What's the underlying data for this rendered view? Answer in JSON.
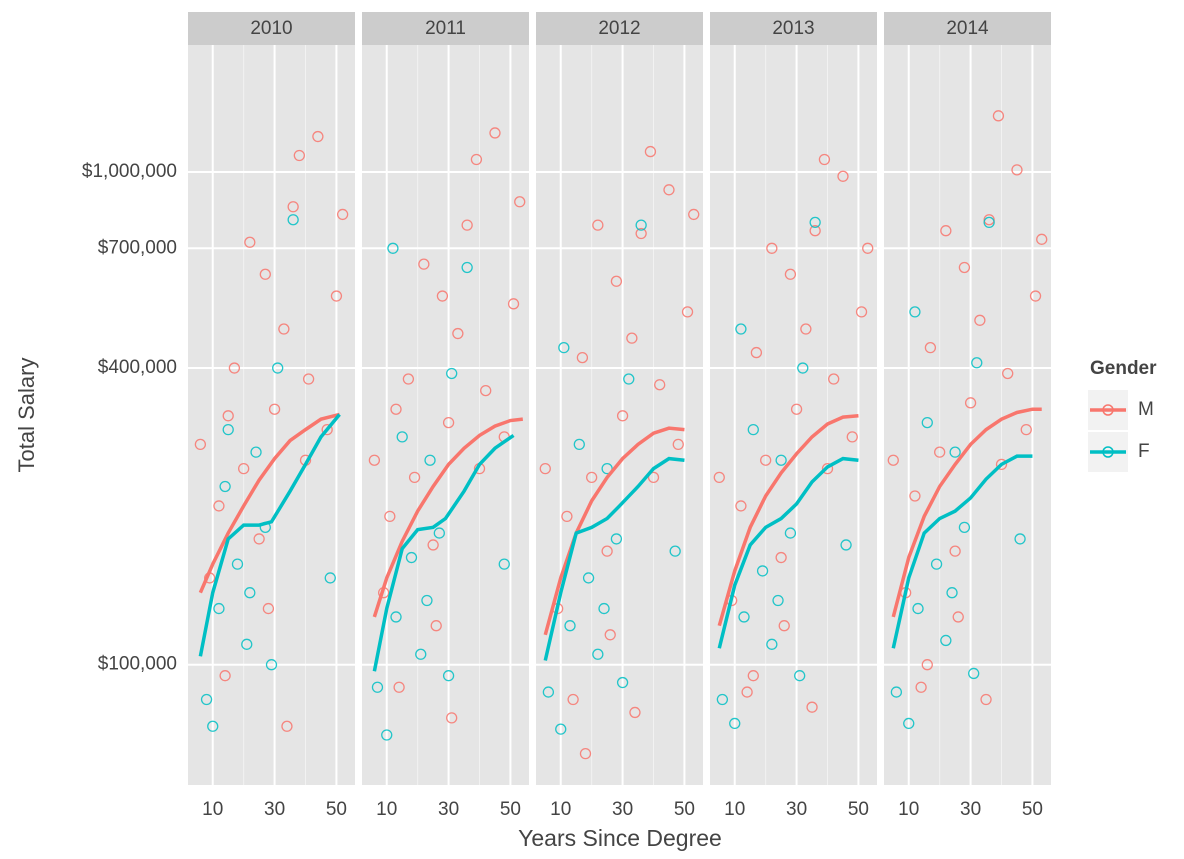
{
  "chart_data": {
    "type": "scatter",
    "log_y": true,
    "grid": true,
    "xlabel": "Years Since Degree",
    "ylabel": "Total Salary",
    "legend_title": "Gender",
    "legend_position": "right",
    "xlim": [
      2,
      56
    ],
    "xticks": [
      10,
      30,
      50
    ],
    "xminor": [
      20,
      40
    ],
    "ylim": [
      57000,
      1810000
    ],
    "yticks": [
      {
        "value": 100000,
        "label": "$100,000"
      },
      {
        "value": 400000,
        "label": "$400,000"
      },
      {
        "value": 700000,
        "label": "$700,000"
      },
      {
        "value": 1000000,
        "label": "$1,000,000"
      }
    ],
    "series": [
      {
        "name": "M",
        "color": "#F8766D"
      },
      {
        "name": "F",
        "color": "#00BFC4"
      }
    ],
    "facets": [
      {
        "title": "2010",
        "data": [
          {
            "x": [
              6,
              9,
              12,
              14,
              17,
              20,
              22,
              25,
              27,
              30,
              33,
              36,
              38,
              41,
              44,
              47,
              50,
              52,
              28,
              40,
              15,
              34
            ],
            "values": [
              280000,
              150000,
              210000,
              95000,
              400000,
              250000,
              720000,
              180000,
              620000,
              330000,
              480000,
              850000,
              1080000,
              380000,
              1180000,
              300000,
              560000,
              820000,
              130000,
              260000,
              320000,
              75000
            ],
            "smooth_x": [
              6,
              10,
              15,
              20,
              25,
              30,
              35,
              40,
              45,
              51
            ],
            "smooth_values": [
              140000,
              160000,
              185000,
              210000,
              237000,
              262000,
              285000,
              300000,
              315000,
              322000
            ]
          },
          {
            "x": [
              8,
              10,
              12,
              15,
              18,
              21,
              24,
              27,
              31,
              36,
              48,
              14,
              22,
              29
            ],
            "values": [
              85000,
              75000,
              130000,
              300000,
              160000,
              110000,
              270000,
              190000,
              400000,
              800000,
              150000,
              230000,
              140000,
              100000
            ],
            "smooth_x": [
              6,
              10,
              15,
              20,
              25,
              29,
              35,
              40,
              45,
              51
            ],
            "smooth_values": [
              104000,
              140000,
              180000,
              192000,
              192000,
              195000,
              225000,
              255000,
              290000,
              322000
            ]
          }
        ]
      },
      {
        "title": "2011",
        "data": [
          {
            "x": [
              6,
              9,
              11,
              14,
              17,
              19,
              22,
              25,
              28,
              30,
              33,
              36,
              39,
              42,
              45,
              48,
              51,
              53,
              26,
              40,
              13,
              31
            ],
            "values": [
              260000,
              140000,
              200000,
              90000,
              380000,
              240000,
              650000,
              175000,
              560000,
              310000,
              470000,
              780000,
              1060000,
              360000,
              1200000,
              290000,
              540000,
              870000,
              120000,
              250000,
              330000,
              78000
            ],
            "smooth_x": [
              6,
              10,
              15,
              20,
              25,
              30,
              35,
              40,
              45,
              50,
              54
            ],
            "smooth_values": [
              125000,
              150000,
              178000,
              205000,
              230000,
              255000,
              275000,
              292000,
              305000,
              313000,
              315000
            ]
          },
          {
            "x": [
              7,
              10,
              13,
              15,
              18,
              21,
              24,
              27,
              31,
              36,
              48,
              12,
              23,
              30
            ],
            "values": [
              90000,
              72000,
              125000,
              290000,
              165000,
              105000,
              260000,
              185000,
              390000,
              640000,
              160000,
              700000,
              135000,
              95000
            ],
            "smooth_x": [
              6,
              10,
              15,
              20,
              25,
              29,
              35,
              40,
              45,
              51
            ],
            "smooth_values": [
              97000,
              130000,
              172000,
              188000,
              190000,
              198000,
              225000,
              255000,
              275000,
              292000
            ]
          }
        ]
      },
      {
        "title": "2012",
        "data": [
          {
            "x": [
              5,
              9,
              12,
              14,
              17,
              20,
              22,
              25,
              28,
              30,
              33,
              36,
              39,
              42,
              45,
              48,
              51,
              53,
              26,
              40,
              18,
              34
            ],
            "values": [
              250000,
              130000,
              200000,
              85000,
              420000,
              240000,
              780000,
              170000,
              600000,
              320000,
              460000,
              750000,
              1100000,
              370000,
              920000,
              280000,
              520000,
              820000,
              115000,
              240000,
              66000,
              80000
            ],
            "smooth_x": [
              5,
              10,
              15,
              20,
              25,
              30,
              35,
              40,
              45,
              50
            ],
            "smooth_values": [
              115000,
              150000,
              185000,
              215000,
              240000,
              262000,
              280000,
              295000,
              302000,
              300000
            ]
          },
          {
            "x": [
              6,
              10,
              13,
              16,
              19,
              22,
              25,
              28,
              32,
              36,
              47,
              11,
              24,
              30
            ],
            "values": [
              88000,
              74000,
              120000,
              280000,
              150000,
              105000,
              250000,
              180000,
              380000,
              780000,
              170000,
              440000,
              130000,
              92000
            ],
            "smooth_x": [
              5,
              10,
              15,
              20,
              25,
              29,
              35,
              40,
              45,
              50
            ],
            "smooth_values": [
              102000,
              140000,
              185000,
              190000,
              198000,
              210000,
              230000,
              250000,
              262000,
              260000
            ]
          }
        ]
      },
      {
        "title": "2013",
        "data": [
          {
            "x": [
              5,
              9,
              12,
              14,
              17,
              20,
              22,
              25,
              28,
              30,
              33,
              36,
              39,
              42,
              45,
              48,
              51,
              53,
              26,
              40,
              16,
              35
            ],
            "values": [
              240000,
              135000,
              210000,
              88000,
              430000,
              260000,
              700000,
              165000,
              620000,
              330000,
              480000,
              760000,
              1060000,
              380000,
              980000,
              290000,
              520000,
              700000,
              120000,
              250000,
              95000,
              82000
            ],
            "smooth_x": [
              5,
              10,
              15,
              20,
              25,
              30,
              35,
              40,
              45,
              50
            ],
            "smooth_values": [
              120000,
              155000,
              190000,
              220000,
              245000,
              268000,
              290000,
              308000,
              318000,
              320000
            ]
          },
          {
            "x": [
              6,
              10,
              13,
              16,
              19,
              22,
              25,
              28,
              32,
              36,
              46,
              12,
              24,
              31
            ],
            "values": [
              85000,
              76000,
              125000,
              300000,
              155000,
              110000,
              260000,
              185000,
              400000,
              790000,
              175000,
              480000,
              135000,
              95000
            ],
            "smooth_x": [
              5,
              10,
              15,
              20,
              25,
              30,
              35,
              40,
              45,
              50
            ],
            "smooth_values": [
              108000,
              145000,
              175000,
              190000,
              198000,
              212000,
              235000,
              252000,
              262000,
              260000
            ]
          }
        ]
      },
      {
        "title": "2014",
        "data": [
          {
            "x": [
              5,
              9,
              12,
              14,
              17,
              20,
              22,
              25,
              28,
              30,
              33,
              36,
              39,
              42,
              45,
              48,
              51,
              53,
              26,
              40,
              16,
              35
            ],
            "values": [
              260000,
              140000,
              220000,
              90000,
              440000,
              270000,
              760000,
              170000,
              640000,
              340000,
              500000,
              800000,
              1300000,
              390000,
              1010000,
              300000,
              560000,
              730000,
              125000,
              255000,
              100000,
              85000
            ],
            "smooth_x": [
              5,
              10,
              15,
              20,
              25,
              30,
              35,
              40,
              45,
              50,
              53
            ],
            "smooth_values": [
              125000,
              165000,
              200000,
              230000,
              255000,
              280000,
              300000,
              315000,
              325000,
              330000,
              330000
            ]
          },
          {
            "x": [
              6,
              10,
              13,
              16,
              19,
              22,
              25,
              28,
              32,
              36,
              46,
              12,
              24,
              31
            ],
            "values": [
              88000,
              76000,
              130000,
              310000,
              160000,
              112000,
              270000,
              190000,
              410000,
              790000,
              180000,
              520000,
              140000,
              96000
            ],
            "smooth_x": [
              5,
              10,
              15,
              20,
              25,
              30,
              35,
              40,
              45,
              50
            ],
            "smooth_values": [
              108000,
              150000,
              185000,
              198000,
              205000,
              218000,
              238000,
              255000,
              265000,
              265000
            ]
          }
        ]
      }
    ]
  }
}
